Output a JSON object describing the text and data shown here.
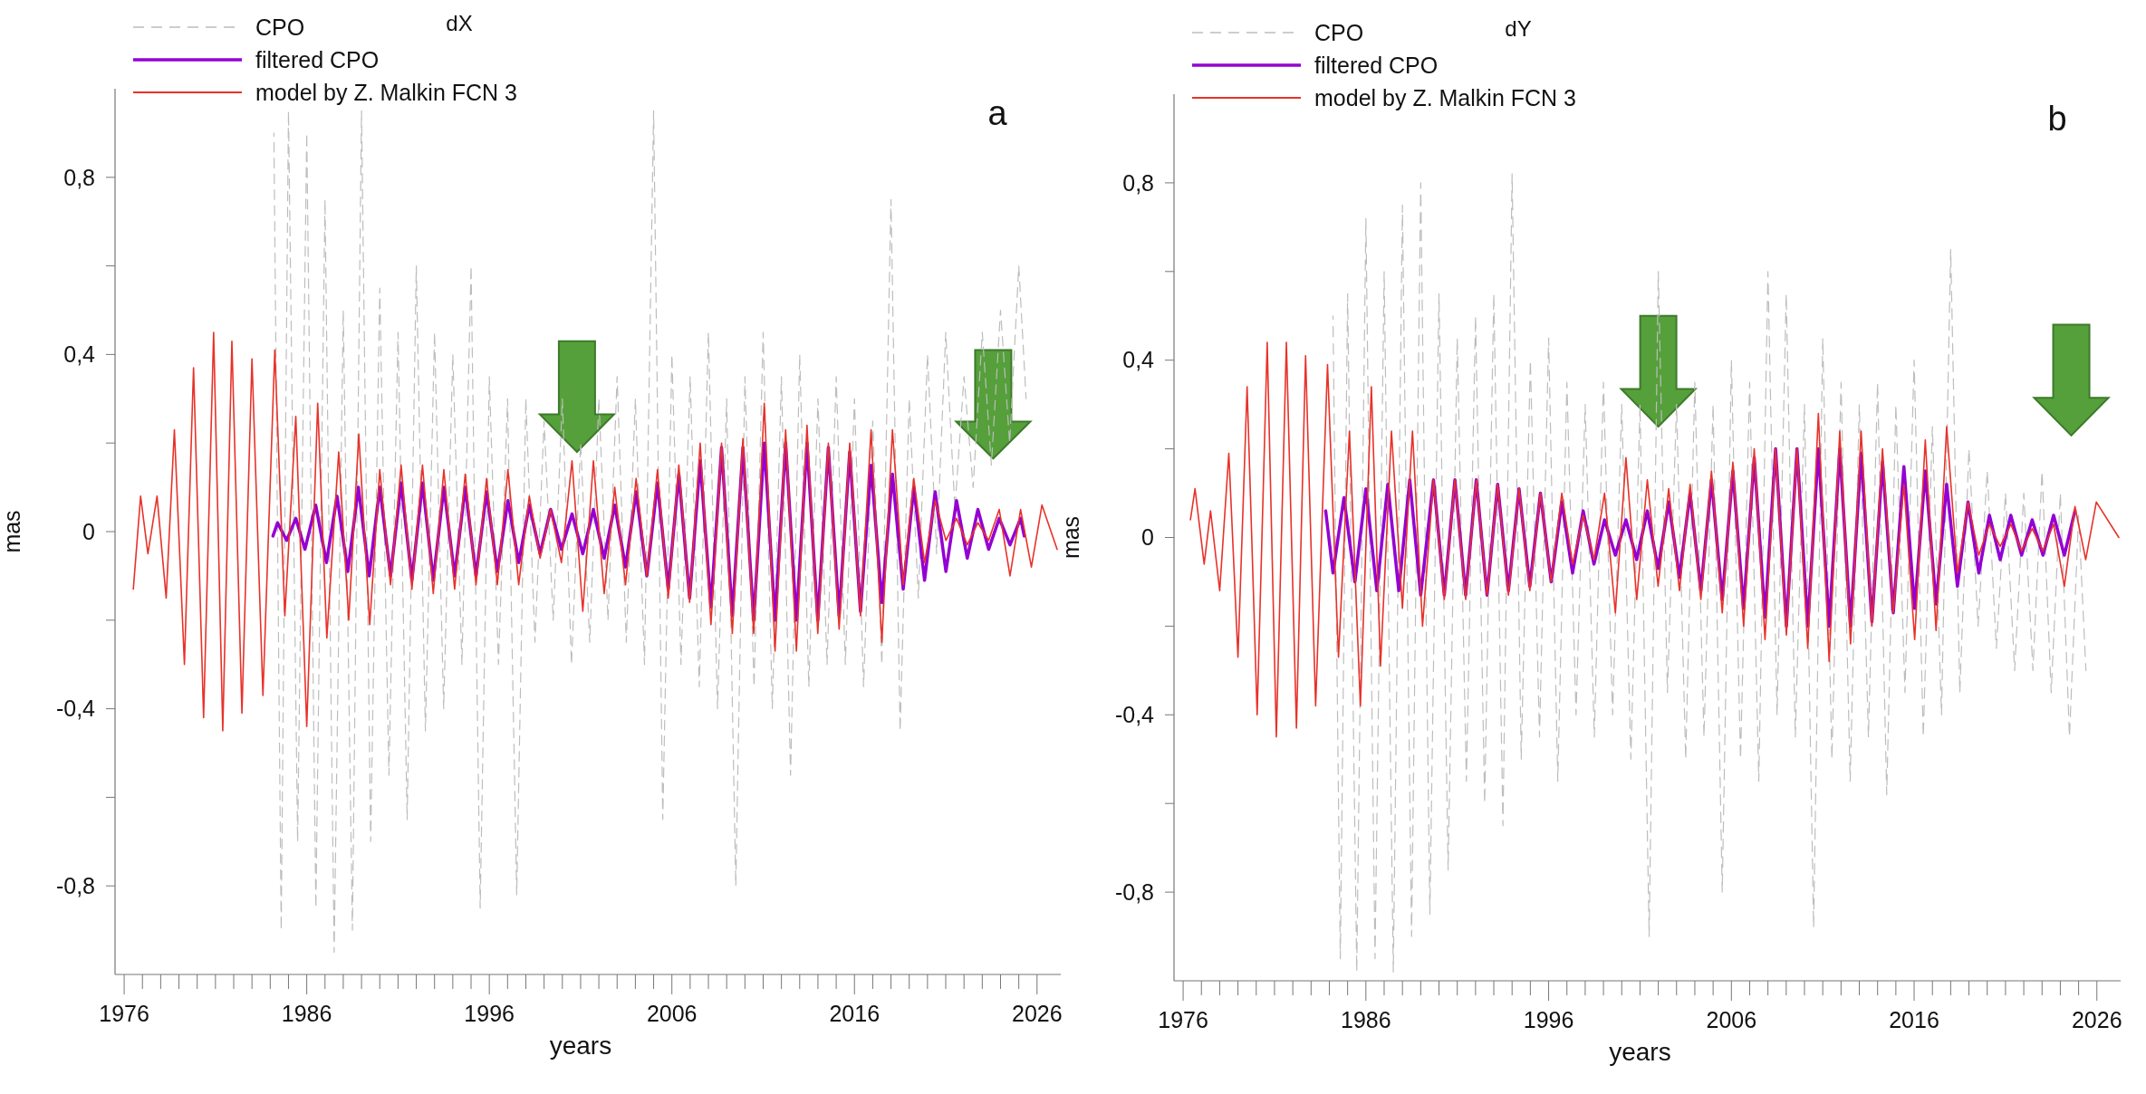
{
  "chart_data": [
    {
      "type": "line",
      "title": "dX",
      "xlabel": "years",
      "ylabel": "mas",
      "annotations": [
        "a"
      ],
      "legend": "top left",
      "xlim": [
        1975.5,
        2027.3
      ],
      "ylim": [
        -1,
        1
      ],
      "xticks": [
        1976,
        {
          "value": 1977,
          "label": null
        },
        {
          "value": 1978,
          "label": null
        },
        {
          "value": 1979,
          "label": null
        },
        {
          "value": 1980,
          "label": null
        },
        {
          "value": 1981,
          "label": null
        },
        {
          "value": 1982,
          "label": null
        },
        {
          "value": 1983,
          "label": null
        },
        {
          "value": 1984,
          "label": null
        },
        {
          "value": 1985,
          "label": null
        },
        1986,
        {
          "value": 1987,
          "label": null
        },
        {
          "value": 1988,
          "label": null
        },
        {
          "value": 1989,
          "label": null
        },
        {
          "value": 1990,
          "label": null
        },
        {
          "value": 1991,
          "label": null
        },
        {
          "value": 1992,
          "label": null
        },
        {
          "value": 1993,
          "label": null
        },
        {
          "value": 1994,
          "label": null
        },
        {
          "value": 1995,
          "label": null
        },
        1996,
        {
          "value": 1997,
          "label": null
        },
        {
          "value": 1998,
          "label": null
        },
        {
          "value": 1999,
          "label": null
        },
        {
          "value": 2000,
          "label": null
        },
        {
          "value": 2001,
          "label": null
        },
        {
          "value": 2002,
          "label": null
        },
        {
          "value": 2003,
          "label": null
        },
        {
          "value": 2004,
          "label": null
        },
        {
          "value": 2005,
          "label": null
        },
        2006,
        {
          "value": 2007,
          "label": null
        },
        {
          "value": 2008,
          "label": null
        },
        {
          "value": 2009,
          "label": null
        },
        {
          "value": 2010,
          "label": null
        },
        {
          "value": 2011,
          "label": null
        },
        {
          "value": 2012,
          "label": null
        },
        {
          "value": 2013,
          "label": null
        },
        {
          "value": 2014,
          "label": null
        },
        {
          "value": 2015,
          "label": null
        },
        2016,
        {
          "value": 2017,
          "label": null
        },
        {
          "value": 2018,
          "label": null
        },
        {
          "value": 2019,
          "label": null
        },
        {
          "value": 2020,
          "label": null
        },
        {
          "value": 2021,
          "label": null
        },
        {
          "value": 2022,
          "label": null
        },
        {
          "value": 2023,
          "label": null
        },
        {
          "value": 2024,
          "label": null
        },
        {
          "value": 2025,
          "label": null
        },
        2026
      ],
      "yticks": [
        {
          "value": -0.8,
          "label": "-0,8"
        },
        {
          "value": -0.6,
          "label": null
        },
        {
          "value": -0.4,
          "label": "-0,4"
        },
        {
          "value": -0.2,
          "label": null
        },
        0,
        {
          "value": 0.2,
          "label": null
        },
        {
          "value": 0.4,
          "label": "0,4"
        },
        {
          "value": 0.6,
          "label": null
        },
        {
          "value": 0.8,
          "label": "0,8"
        }
      ],
      "series": [
        {
          "name": "CPO",
          "color": "#bdbdbd",
          "line_style": "dashed",
          "x": [
            1984.2,
            1984.6,
            1985.0,
            1985.5,
            1986.0,
            1986.5,
            1987.0,
            1987.5,
            1988.0,
            1988.5,
            1989.0,
            1989.5,
            1990.0,
            1990.5,
            1991.0,
            1991.5,
            1992.0,
            1992.5,
            1993.0,
            1993.5,
            1994.0,
            1994.5,
            1995.0,
            1995.5,
            1996.0,
            1996.5,
            1997.0,
            1997.5,
            1998.0,
            1998.5,
            1999.0,
            1999.5,
            2000.0,
            2000.5,
            2001.0,
            2001.5,
            2002.0,
            2002.5,
            2003.0,
            2003.5,
            2004.0,
            2004.5,
            2005.0,
            2005.5,
            2006.0,
            2006.5,
            2007.0,
            2007.5,
            2008.0,
            2008.5,
            2009.0,
            2009.5,
            2010.0,
            2010.5,
            2011.0,
            2011.5,
            2012.0,
            2012.5,
            2013.0,
            2013.5,
            2014.0,
            2014.5,
            2015.0,
            2015.5,
            2016.0,
            2016.5,
            2017.0,
            2017.5,
            2018.0,
            2018.5,
            2019.0,
            2019.5,
            2020.0,
            2020.5,
            2021.0,
            2021.5,
            2022.0,
            2022.5,
            2023.0,
            2023.5,
            2024.0,
            2024.5,
            2025.0,
            2025.4
          ],
          "values": [
            0.9,
            -0.9,
            0.95,
            -0.7,
            0.9,
            -0.85,
            0.75,
            -0.95,
            0.5,
            -0.9,
            0.95,
            -0.7,
            0.55,
            -0.55,
            0.45,
            -0.65,
            0.6,
            -0.45,
            0.45,
            -0.4,
            0.4,
            -0.3,
            0.6,
            -0.85,
            0.35,
            -0.3,
            0.3,
            -0.82,
            0.3,
            -0.25,
            0.25,
            -0.2,
            0.3,
            -0.3,
            0.2,
            -0.25,
            0.3,
            -0.2,
            0.35,
            -0.25,
            0.3,
            -0.3,
            0.95,
            -0.65,
            0.4,
            -0.3,
            0.35,
            -0.35,
            0.45,
            -0.4,
            0.3,
            -0.8,
            0.35,
            -0.35,
            0.45,
            -0.4,
            0.35,
            -0.55,
            0.4,
            -0.35,
            0.3,
            -0.3,
            0.35,
            -0.3,
            0.3,
            -0.35,
            0.25,
            -0.3,
            0.75,
            -0.45,
            0.3,
            -0.15,
            0.4,
            -0.05,
            0.45,
            0.05,
            0.35,
            0.1,
            0.45,
            0.15,
            0.5,
            0.2,
            0.6,
            0.3
          ]
        },
        {
          "name": "filtered CPO",
          "color": "#9400d3",
          "line_style": "solid",
          "x": [
            1984.15,
            1984.4,
            1984.9,
            1985.4,
            1985.9,
            1986.49,
            1987.08,
            1987.66,
            1988.25,
            1988.83,
            1989.42,
            1990.0,
            1990.59,
            1991.17,
            1991.76,
            1992.34,
            1992.93,
            1993.51,
            1994.1,
            1994.68,
            1995.27,
            1995.85,
            1996.44,
            1997.02,
            1997.61,
            1998.19,
            1998.78,
            1999.36,
            1999.95,
            2000.53,
            2001.12,
            2001.7,
            2002.29,
            2002.87,
            2003.46,
            2004.04,
            2004.63,
            2005.21,
            2005.8,
            2006.38,
            2006.97,
            2007.55,
            2008.14,
            2008.72,
            2009.31,
            2009.89,
            2010.48,
            2011.06,
            2011.65,
            2012.23,
            2012.82,
            2013.4,
            2013.99,
            2014.57,
            2015.16,
            2015.74,
            2016.33,
            2016.91,
            2017.5,
            2018.08,
            2018.67,
            2019.25,
            2019.84,
            2020.42,
            2021.01,
            2021.59,
            2022.18,
            2022.76,
            2023.35,
            2023.93,
            2024.52,
            2025.1,
            2025.3
          ],
          "values": [
            -0.01,
            0.02,
            -0.02,
            0.03,
            -0.04,
            0.06,
            -0.07,
            0.08,
            -0.09,
            0.1,
            -0.1,
            0.1,
            -0.1,
            0.11,
            -0.11,
            0.11,
            -0.11,
            0.1,
            -0.1,
            0.1,
            -0.1,
            0.09,
            -0.09,
            0.07,
            -0.07,
            0.06,
            -0.05,
            0.05,
            -0.04,
            0.04,
            -0.05,
            0.05,
            -0.06,
            0.06,
            -0.08,
            0.09,
            -0.1,
            0.11,
            -0.13,
            0.13,
            -0.15,
            0.16,
            -0.17,
            0.19,
            -0.19,
            0.19,
            -0.2,
            0.2,
            -0.2,
            0.2,
            -0.2,
            0.2,
            -0.2,
            0.19,
            -0.19,
            0.18,
            -0.18,
            0.15,
            -0.16,
            0.13,
            -0.13,
            0.1,
            -0.11,
            0.09,
            -0.09,
            0.07,
            -0.06,
            0.05,
            -0.04,
            0.03,
            -0.03,
            0.03,
            -0.01
          ]
        },
        {
          "name": "model by Z. Malkin FCN 3",
          "color": "#e8322a",
          "line_style": "solid",
          "x": [
            1976.5,
            1976.9,
            1977.3,
            1977.8,
            1978.3,
            1978.75,
            1979.3,
            1979.8,
            1980.35,
            1980.9,
            1981.4,
            1981.9,
            1982.45,
            1983.0,
            1983.6,
            1984.25,
            1984.8,
            1985.4,
            1986.0,
            1986.6,
            1987.1,
            1987.75,
            1988.3,
            1988.85,
            1989.45,
            1990.0,
            1990.59,
            1991.17,
            1991.76,
            1992.34,
            1992.93,
            1993.51,
            1994.1,
            1994.68,
            1995.27,
            1995.85,
            1996.44,
            1997.02,
            1997.61,
            1998.19,
            1998.78,
            1999.36,
            1999.95,
            2000.53,
            2001.12,
            2001.7,
            2002.29,
            2002.87,
            2003.46,
            2004.04,
            2004.63,
            2005.21,
            2005.8,
            2006.38,
            2006.97,
            2007.55,
            2008.14,
            2008.72,
            2009.31,
            2009.89,
            2010.48,
            2011.06,
            2011.65,
            2012.23,
            2012.82,
            2013.4,
            2013.99,
            2014.57,
            2015.16,
            2015.74,
            2016.33,
            2016.91,
            2017.5,
            2018.08,
            2018.67,
            2019.25,
            2019.84,
            2020.42,
            2021.01,
            2021.59,
            2022.18,
            2022.76,
            2023.35,
            2023.93,
            2024.52,
            2025.1,
            2025.69,
            2026.27,
            2027.1
          ],
          "values": [
            -0.13,
            0.08,
            -0.05,
            0.08,
            -0.15,
            0.23,
            -0.3,
            0.37,
            -0.42,
            0.45,
            -0.45,
            0.43,
            -0.41,
            0.39,
            -0.37,
            0.41,
            -0.19,
            0.26,
            -0.44,
            0.29,
            -0.24,
            0.18,
            -0.2,
            0.22,
            -0.21,
            0.14,
            -0.12,
            0.15,
            -0.13,
            0.15,
            -0.14,
            0.14,
            -0.13,
            0.13,
            -0.12,
            0.12,
            -0.12,
            0.14,
            -0.12,
            0.08,
            -0.06,
            0.05,
            -0.07,
            0.16,
            -0.18,
            0.16,
            -0.14,
            0.1,
            -0.12,
            0.12,
            -0.1,
            0.14,
            -0.15,
            0.15,
            -0.16,
            0.2,
            -0.21,
            0.2,
            -0.23,
            0.21,
            -0.23,
            0.29,
            -0.27,
            0.23,
            -0.27,
            0.24,
            -0.23,
            0.2,
            -0.22,
            0.2,
            -0.19,
            0.23,
            -0.25,
            0.23,
            -0.12,
            0.12,
            -0.07,
            0.07,
            -0.02,
            0.03,
            -0.03,
            0.02,
            -0.02,
            0.05,
            -0.1,
            0.05,
            -0.08,
            0.06,
            -0.04
          ]
        }
      ]
    },
    {
      "type": "line",
      "title": "dY",
      "xlabel": "years",
      "ylabel": "mas",
      "annotations": [
        "b"
      ],
      "legend": "top left",
      "xlim": [
        1975.5,
        2027.3
      ],
      "ylim": [
        -1,
        1
      ],
      "xticks": [
        1976,
        {
          "value": 1977,
          "label": null
        },
        {
          "value": 1978,
          "label": null
        },
        {
          "value": 1979,
          "label": null
        },
        {
          "value": 1980,
          "label": null
        },
        {
          "value": 1981,
          "label": null
        },
        {
          "value": 1982,
          "label": null
        },
        {
          "value": 1983,
          "label": null
        },
        {
          "value": 1984,
          "label": null
        },
        {
          "value": 1985,
          "label": null
        },
        1986,
        {
          "value": 1987,
          "label": null
        },
        {
          "value": 1988,
          "label": null
        },
        {
          "value": 1989,
          "label": null
        },
        {
          "value": 1990,
          "label": null
        },
        {
          "value": 1991,
          "label": null
        },
        {
          "value": 1992,
          "label": null
        },
        {
          "value": 1993,
          "label": null
        },
        {
          "value": 1994,
          "label": null
        },
        {
          "value": 1995,
          "label": null
        },
        1996,
        {
          "value": 1997,
          "label": null
        },
        {
          "value": 1998,
          "label": null
        },
        {
          "value": 1999,
          "label": null
        },
        {
          "value": 2000,
          "label": null
        },
        {
          "value": 2001,
          "label": null
        },
        {
          "value": 2002,
          "label": null
        },
        {
          "value": 2003,
          "label": null
        },
        {
          "value": 2004,
          "label": null
        },
        {
          "value": 2005,
          "label": null
        },
        2006,
        {
          "value": 2007,
          "label": null
        },
        {
          "value": 2008,
          "label": null
        },
        {
          "value": 2009,
          "label": null
        },
        {
          "value": 2010,
          "label": null
        },
        {
          "value": 2011,
          "label": null
        },
        {
          "value": 2012,
          "label": null
        },
        {
          "value": 2013,
          "label": null
        },
        {
          "value": 2014,
          "label": null
        },
        {
          "value": 2015,
          "label": null
        },
        2016,
        {
          "value": 2017,
          "label": null
        },
        {
          "value": 2018,
          "label": null
        },
        {
          "value": 2019,
          "label": null
        },
        {
          "value": 2020,
          "label": null
        },
        {
          "value": 2021,
          "label": null
        },
        {
          "value": 2022,
          "label": null
        },
        {
          "value": 2023,
          "label": null
        },
        {
          "value": 2024,
          "label": null
        },
        {
          "value": 2025,
          "label": null
        },
        2026
      ],
      "yticks": [
        {
          "value": -0.8,
          "label": "-0,8"
        },
        {
          "value": -0.6,
          "label": null
        },
        {
          "value": -0.4,
          "label": "-0,4"
        },
        {
          "value": -0.2,
          "label": null
        },
        0,
        {
          "value": 0.2,
          "label": null
        },
        {
          "value": 0.4,
          "label": "0,4"
        },
        {
          "value": 0.6,
          "label": null
        },
        {
          "value": 0.8,
          "label": "0,8"
        }
      ],
      "series": [
        {
          "name": "CPO",
          "color": "#bdbdbd",
          "line_style": "dashed",
          "x": [
            1984.2,
            1984.6,
            1985.0,
            1985.5,
            1986.0,
            1986.5,
            1987.0,
            1987.5,
            1988.0,
            1988.5,
            1989.0,
            1989.5,
            1990.0,
            1990.5,
            1991.0,
            1991.5,
            1992.0,
            1992.5,
            1993.0,
            1993.5,
            1994.0,
            1994.5,
            1995.0,
            1995.5,
            1996.0,
            1996.5,
            1997.0,
            1997.5,
            1998.0,
            1998.5,
            1999.0,
            1999.5,
            2000.0,
            2000.5,
            2001.0,
            2001.5,
            2002.0,
            2002.5,
            2003.0,
            2003.5,
            2004.0,
            2004.5,
            2005.0,
            2005.5,
            2006.0,
            2006.5,
            2007.0,
            2007.5,
            2008.0,
            2008.5,
            2009.0,
            2009.5,
            2010.0,
            2010.5,
            2011.0,
            2011.5,
            2012.0,
            2012.5,
            2013.0,
            2013.5,
            2014.0,
            2014.5,
            2015.0,
            2015.5,
            2016.0,
            2016.5,
            2017.0,
            2017.5,
            2018.0,
            2018.5,
            2019.0,
            2019.5,
            2020.0,
            2020.5,
            2021.0,
            2021.5,
            2022.0,
            2022.5,
            2023.0,
            2023.5,
            2024.0,
            2024.5,
            2025.0,
            2025.4
          ],
          "values": [
            0.5,
            -0.95,
            0.55,
            -0.98,
            0.72,
            -0.95,
            0.6,
            -0.98,
            0.75,
            -0.9,
            0.8,
            -0.85,
            0.55,
            -0.75,
            0.45,
            -0.55,
            0.5,
            -0.6,
            0.55,
            -0.65,
            0.82,
            -0.5,
            0.4,
            -0.45,
            0.45,
            -0.55,
            0.35,
            -0.4,
            0.3,
            -0.45,
            0.35,
            -0.4,
            0.3,
            -0.5,
            0.3,
            -0.9,
            0.6,
            -0.35,
            0.3,
            -0.5,
            0.35,
            -0.45,
            0.3,
            -0.8,
            0.4,
            -0.5,
            0.35,
            -0.55,
            0.6,
            -0.4,
            0.55,
            -0.45,
            0.3,
            -0.88,
            0.45,
            -0.5,
            0.35,
            -0.55,
            0.3,
            -0.45,
            0.35,
            -0.58,
            0.3,
            -0.35,
            0.4,
            -0.45,
            0.25,
            -0.4,
            0.65,
            -0.35,
            0.2,
            -0.2,
            0.15,
            -0.25,
            0.1,
            -0.3,
            0.1,
            -0.3,
            0.15,
            -0.35,
            0.1,
            -0.45,
            0.05,
            -0.3
          ]
        },
        {
          "name": "filtered CPO",
          "color": "#9400d3",
          "line_style": "solid",
          "x": [
            1983.8,
            1984.2,
            1984.8,
            1985.4,
            1986.0,
            1986.6,
            1987.2,
            1987.8,
            1988.4,
            1989.0,
            1989.7,
            1990.29,
            1990.87,
            1991.46,
            1992.04,
            1992.63,
            1993.21,
            1993.8,
            1994.38,
            1994.97,
            1995.55,
            1996.14,
            1996.72,
            1997.31,
            1997.89,
            1998.48,
            1999.06,
            1999.65,
            2000.23,
            2000.82,
            2001.4,
            2001.99,
            2002.57,
            2003.16,
            2003.74,
            2004.33,
            2004.91,
            2005.5,
            2006.08,
            2006.67,
            2007.25,
            2007.84,
            2008.42,
            2009.01,
            2009.59,
            2010.18,
            2010.76,
            2011.35,
            2011.93,
            2012.52,
            2013.1,
            2013.69,
            2014.27,
            2014.86,
            2015.44,
            2016.03,
            2016.61,
            2017.2,
            2017.78,
            2018.37,
            2018.95,
            2019.54,
            2020.12,
            2020.71,
            2021.29,
            2021.88,
            2022.46,
            2023.05,
            2023.63,
            2024.22,
            2024.8
          ],
          "values": [
            0.06,
            -0.08,
            0.09,
            -0.1,
            0.11,
            -0.12,
            0.12,
            -0.12,
            0.13,
            -0.13,
            0.13,
            -0.13,
            0.13,
            -0.13,
            0.13,
            -0.13,
            0.12,
            -0.12,
            0.11,
            -0.11,
            0.1,
            -0.1,
            0.08,
            -0.08,
            0.06,
            -0.06,
            0.04,
            -0.04,
            0.04,
            -0.05,
            0.06,
            -0.07,
            0.08,
            -0.09,
            0.1,
            -0.12,
            0.13,
            -0.14,
            0.15,
            -0.16,
            0.18,
            -0.18,
            0.2,
            -0.2,
            0.2,
            -0.2,
            0.2,
            -0.2,
            0.2,
            -0.2,
            0.19,
            -0.19,
            0.17,
            -0.17,
            0.16,
            -0.16,
            0.15,
            -0.15,
            0.12,
            -0.11,
            0.08,
            -0.08,
            0.05,
            -0.05,
            0.05,
            -0.04,
            0.04,
            -0.04,
            0.05,
            -0.04,
            0.06
          ]
        },
        {
          "name": "model by Z. Malkin FCN 3",
          "color": "#e8322a",
          "line_style": "solid",
          "x": [
            1976.4,
            1976.65,
            1977.15,
            1977.5,
            1978.0,
            1978.5,
            1979.0,
            1979.5,
            1980.05,
            1980.6,
            1981.1,
            1981.65,
            1982.2,
            1982.7,
            1983.25,
            1983.9,
            1984.5,
            1985.1,
            1985.7,
            1986.3,
            1986.8,
            1987.4,
            1988.0,
            1988.55,
            1989.1,
            1989.7,
            1990.29,
            1990.87,
            1991.46,
            1992.04,
            1992.63,
            1993.21,
            1993.8,
            1994.38,
            1994.97,
            1995.55,
            1996.14,
            1996.72,
            1997.31,
            1997.89,
            1998.48,
            1999.06,
            1999.65,
            2000.23,
            2000.82,
            2001.4,
            2001.99,
            2002.57,
            2003.16,
            2003.74,
            2004.33,
            2004.91,
            2005.5,
            2006.08,
            2006.67,
            2007.25,
            2007.84,
            2008.42,
            2009.01,
            2009.59,
            2010.18,
            2010.76,
            2011.35,
            2011.93,
            2012.52,
            2013.1,
            2013.69,
            2014.27,
            2014.86,
            2015.44,
            2016.03,
            2016.61,
            2017.2,
            2017.78,
            2018.37,
            2018.95,
            2019.54,
            2020.12,
            2020.71,
            2021.29,
            2021.88,
            2022.46,
            2023.05,
            2023.63,
            2024.22,
            2024.8,
            2025.39,
            2025.97,
            2027.2
          ],
          "values": [
            0.04,
            0.11,
            -0.06,
            0.06,
            -0.12,
            0.19,
            -0.27,
            0.34,
            -0.4,
            0.44,
            -0.45,
            0.44,
            -0.43,
            0.41,
            -0.38,
            0.39,
            -0.27,
            0.24,
            -0.38,
            0.34,
            -0.29,
            0.24,
            -0.16,
            0.24,
            -0.2,
            0.13,
            -0.14,
            0.13,
            -0.14,
            0.13,
            -0.13,
            0.12,
            -0.13,
            0.11,
            -0.12,
            0.1,
            -0.1,
            0.1,
            -0.06,
            0.05,
            -0.05,
            0.1,
            -0.17,
            0.18,
            -0.14,
            0.13,
            -0.11,
            0.11,
            -0.12,
            0.12,
            -0.14,
            0.15,
            -0.17,
            0.17,
            -0.2,
            0.2,
            -0.23,
            0.2,
            -0.22,
            0.2,
            -0.25,
            0.28,
            -0.28,
            0.24,
            -0.24,
            0.24,
            -0.2,
            0.2,
            -0.17,
            0.12,
            -0.23,
            0.22,
            -0.21,
            0.25,
            -0.08,
            0.08,
            -0.04,
            0.03,
            -0.02,
            0.03,
            -0.03,
            0.02,
            -0.03,
            0.03,
            -0.11,
            0.07,
            -0.05,
            0.08,
            0.0
          ]
        }
      ]
    }
  ]
}
